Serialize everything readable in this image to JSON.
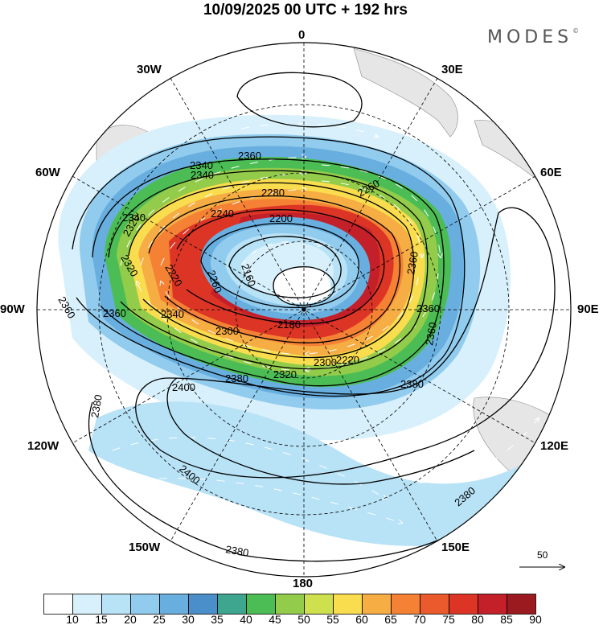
{
  "title": "10/09/2025  00 UTC  + 192 hrs",
  "brand": {
    "name": "MODES",
    "mark": "©"
  },
  "longitude_labels": [
    "0",
    "30E",
    "60E",
    "90E",
    "120E",
    "150E",
    "180",
    "150W",
    "120W",
    "90W",
    "60W",
    "30W"
  ],
  "map": {
    "projection": "south-polar-stereographic",
    "contour_variable": "geopotential height",
    "contour_labels": [
      "2360",
      "2340",
      "2280",
      "2240",
      "2200",
      "2160",
      "2180",
      "2300",
      "2320",
      "2260",
      "2220",
      "2360",
      "2340",
      "2360",
      "2380",
      "2400",
      "2380",
      "2400",
      "2380",
      "2380",
      "2360",
      "2320",
      "2340",
      "2360",
      "2360",
      "2300",
      "2320",
      "2340",
      "2380",
      "2260",
      "2220"
    ],
    "wind_reference_vector": "50",
    "colors": {
      "land": "#e6e6e6",
      "contour": "#000000",
      "wind_arrow": "#ffffff"
    }
  },
  "colorbar": {
    "labels": [
      "10",
      "15",
      "20",
      "25",
      "30",
      "35",
      "40",
      "45",
      "50",
      "55",
      "60",
      "65",
      "70",
      "75",
      "80",
      "85",
      "90"
    ],
    "colors": [
      "#ffffff",
      "#d7f0fb",
      "#b8e2f6",
      "#91cbee",
      "#68afe0",
      "#4b8fca",
      "#3ea58f",
      "#4cbd55",
      "#93cc4a",
      "#cfe04f",
      "#f9dd4e",
      "#f6ad43",
      "#f58135",
      "#ea5a2c",
      "#dc3526",
      "#c4202a",
      "#9b1a20"
    ]
  }
}
